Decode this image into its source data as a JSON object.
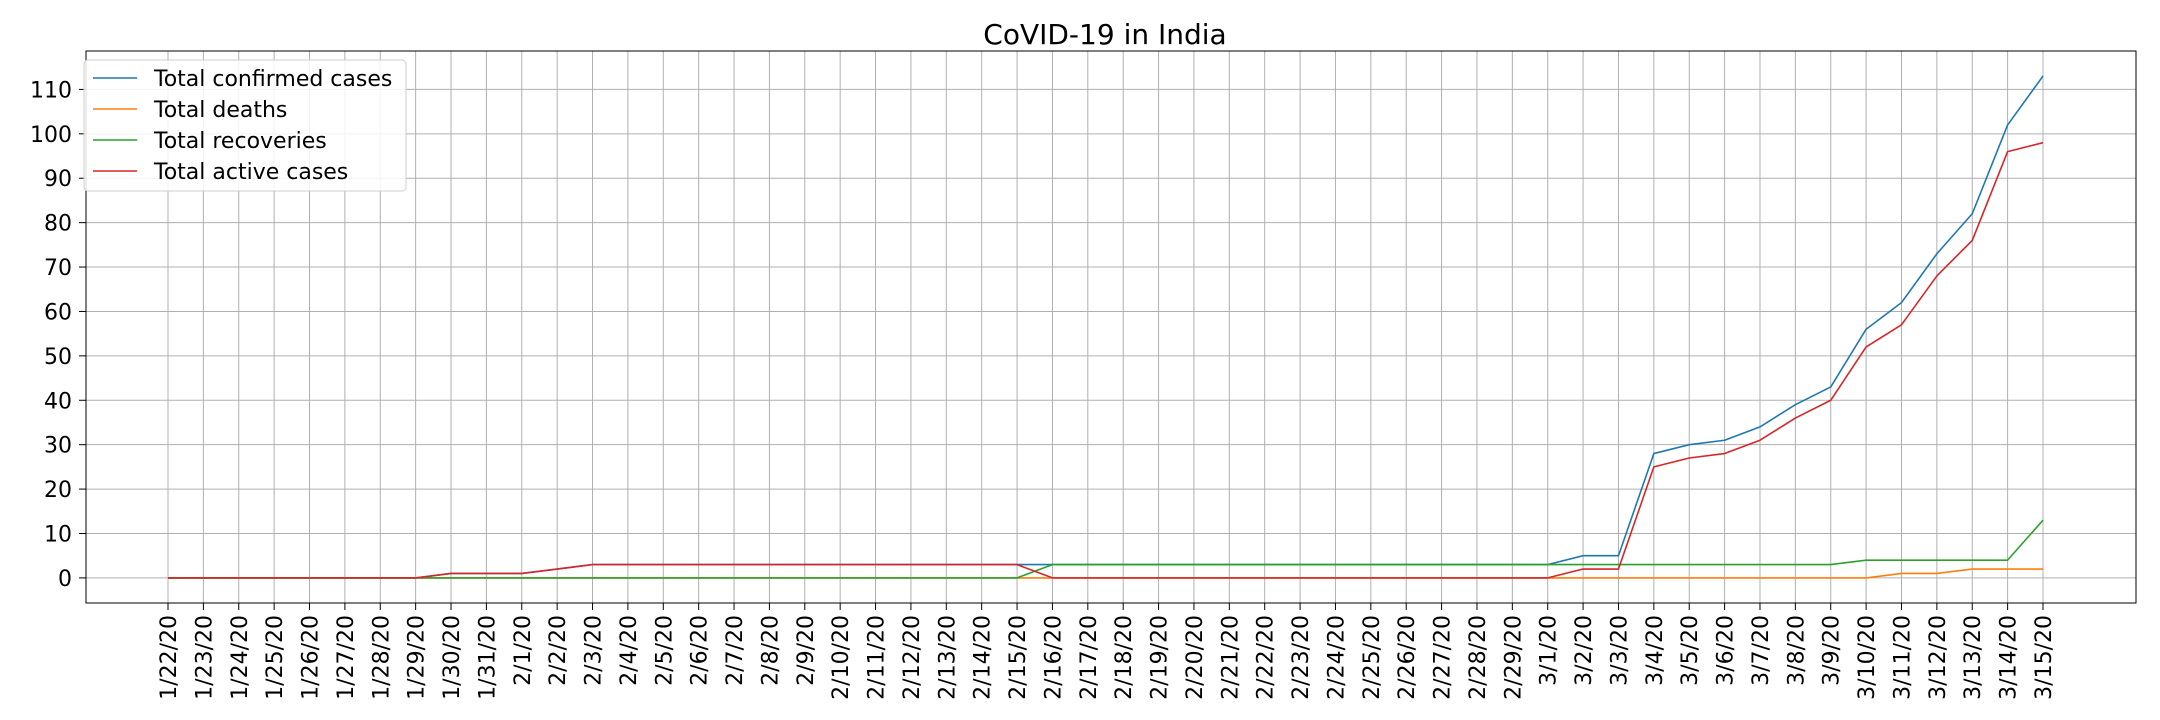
{
  "chart_data": {
    "type": "line",
    "title": "CoVID-19 in India",
    "xlabel": "",
    "ylabel": "",
    "grid": true,
    "legend_position": "top-left",
    "ylim": [
      -5.65,
      118.65
    ],
    "yticks": [
      0,
      10,
      20,
      30,
      40,
      50,
      60,
      70,
      80,
      90,
      100,
      110
    ],
    "x": [
      "1/22/20",
      "1/23/20",
      "1/24/20",
      "1/25/20",
      "1/26/20",
      "1/27/20",
      "1/28/20",
      "1/29/20",
      "1/30/20",
      "1/31/20",
      "2/1/20",
      "2/2/20",
      "2/3/20",
      "2/4/20",
      "2/5/20",
      "2/6/20",
      "2/7/20",
      "2/8/20",
      "2/9/20",
      "2/10/20",
      "2/11/20",
      "2/12/20",
      "2/13/20",
      "2/14/20",
      "2/15/20",
      "2/16/20",
      "2/17/20",
      "2/18/20",
      "2/19/20",
      "2/20/20",
      "2/21/20",
      "2/22/20",
      "2/23/20",
      "2/24/20",
      "2/25/20",
      "2/26/20",
      "2/27/20",
      "2/28/20",
      "2/29/20",
      "3/1/20",
      "3/2/20",
      "3/3/20",
      "3/4/20",
      "3/5/20",
      "3/6/20",
      "3/7/20",
      "3/8/20",
      "3/9/20",
      "3/10/20",
      "3/11/20",
      "3/12/20",
      "3/13/20",
      "3/14/20",
      "3/15/20"
    ],
    "series": [
      {
        "name": "Total confirmed cases",
        "color": "#1f77b4",
        "values": [
          0,
          0,
          0,
          0,
          0,
          0,
          0,
          0,
          1,
          1,
          1,
          2,
          3,
          3,
          3,
          3,
          3,
          3,
          3,
          3,
          3,
          3,
          3,
          3,
          3,
          3,
          3,
          3,
          3,
          3,
          3,
          3,
          3,
          3,
          3,
          3,
          3,
          3,
          3,
          3,
          5,
          5,
          28,
          30,
          31,
          34,
          39,
          43,
          56,
          62,
          73,
          82,
          102,
          113
        ]
      },
      {
        "name": "Total deaths",
        "color": "#ff7f0e",
        "values": [
          0,
          0,
          0,
          0,
          0,
          0,
          0,
          0,
          0,
          0,
          0,
          0,
          0,
          0,
          0,
          0,
          0,
          0,
          0,
          0,
          0,
          0,
          0,
          0,
          0,
          0,
          0,
          0,
          0,
          0,
          0,
          0,
          0,
          0,
          0,
          0,
          0,
          0,
          0,
          0,
          0,
          0,
          0,
          0,
          0,
          0,
          0,
          0,
          0,
          1,
          1,
          2,
          2,
          2
        ]
      },
      {
        "name": "Total recoveries",
        "color": "#2ca02c",
        "values": [
          0,
          0,
          0,
          0,
          0,
          0,
          0,
          0,
          0,
          0,
          0,
          0,
          0,
          0,
          0,
          0,
          0,
          0,
          0,
          0,
          0,
          0,
          0,
          0,
          0,
          3,
          3,
          3,
          3,
          3,
          3,
          3,
          3,
          3,
          3,
          3,
          3,
          3,
          3,
          3,
          3,
          3,
          3,
          3,
          3,
          3,
          3,
          3,
          4,
          4,
          4,
          4,
          4,
          13
        ]
      },
      {
        "name": "Total active cases",
        "color": "#d62728",
        "values": [
          0,
          0,
          0,
          0,
          0,
          0,
          0,
          0,
          1,
          1,
          1,
          2,
          3,
          3,
          3,
          3,
          3,
          3,
          3,
          3,
          3,
          3,
          3,
          3,
          3,
          0,
          0,
          0,
          0,
          0,
          0,
          0,
          0,
          0,
          0,
          0,
          0,
          0,
          0,
          0,
          2,
          2,
          25,
          27,
          28,
          31,
          36,
          40,
          52,
          57,
          68,
          76,
          96,
          98
        ]
      }
    ]
  }
}
